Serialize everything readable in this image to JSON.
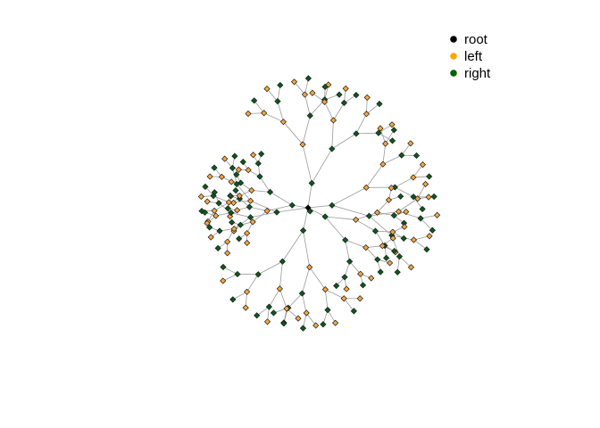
{
  "legend": {
    "items": [
      {
        "key": "root",
        "label": "root",
        "color": "#000000"
      },
      {
        "key": "left",
        "label": "left",
        "color": "#FFA500"
      },
      {
        "key": "right",
        "label": "right",
        "color": "#006400"
      }
    ]
  },
  "node_colors": {
    "root": "#000000",
    "left": "#F4A742",
    "right": "#0B5A1B"
  },
  "edge_color": "#9A9A9A"
}
